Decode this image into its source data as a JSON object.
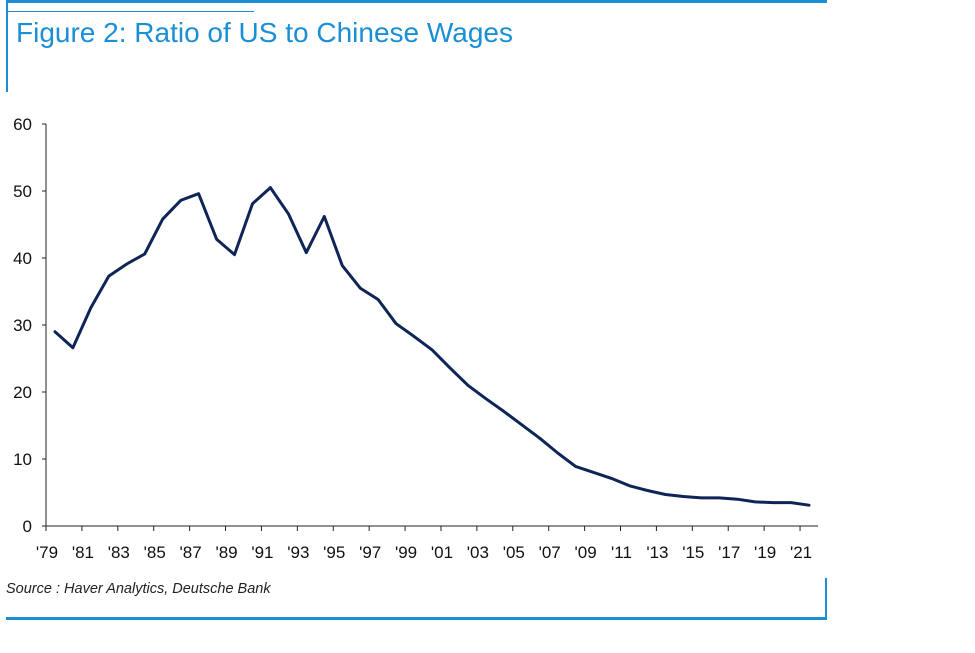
{
  "figure": {
    "title": "Figure 2: Ratio of US to Chinese Wages",
    "source": "Source : Haver Analytics, Deutsche Bank",
    "accent_color": "#1a8fd6",
    "title_color": "#1a8fd6"
  },
  "chart_data": {
    "type": "line",
    "title": "Figure 2: Ratio of US to Chinese Wages",
    "xlabel": "",
    "ylabel": "",
    "ylim": [
      0,
      60
    ],
    "yticks": [
      0,
      10,
      20,
      30,
      40,
      50,
      60
    ],
    "xlim": [
      1979,
      2022
    ],
    "xtick_years": [
      1979,
      1981,
      1983,
      1985,
      1987,
      1989,
      1991,
      1993,
      1995,
      1997,
      1999,
      2001,
      2003,
      2005,
      2007,
      2009,
      2011,
      2013,
      2015,
      2017,
      2019,
      2021
    ],
    "xtick_labels": [
      "'79",
      "'81",
      "'83",
      "'85",
      "'87",
      "'89",
      "'91",
      "'93",
      "'95",
      "'97",
      "'99",
      "'01",
      "'03",
      "'05",
      "'07",
      "'09",
      "'11",
      "'13",
      "'15",
      "'17",
      "'19",
      "'21"
    ],
    "grid": false,
    "line_color": "#0f2557",
    "series": [
      {
        "x": [
          1979.5,
          1980.5,
          1981.5,
          1982.5,
          1983.5,
          1984.5,
          1985.5,
          1986.5,
          1987.5,
          1988.5,
          1989.5,
          1990.5,
          1991.5,
          1992.5,
          1993.5,
          1994.5,
          1995.5,
          1996.5,
          1997.5,
          1998.5,
          1999.5,
          2000.5,
          2001.5,
          2002.5,
          2003.5,
          2004.5,
          2005.5,
          2006.5,
          2007.5,
          2008.5,
          2009.5,
          2010.5,
          2011.5,
          2012.5,
          2013.5,
          2014.5,
          2015.5,
          2016.5,
          2017.5,
          2018.5,
          2019.5,
          2020.5,
          2021.5
        ],
        "values": [
          29.0,
          26.6,
          32.6,
          37.3,
          39.1,
          40.6,
          45.8,
          48.6,
          49.6,
          42.8,
          40.5,
          48.1,
          50.5,
          46.6,
          40.8,
          46.2,
          38.9,
          35.5,
          33.8,
          30.2,
          28.3,
          26.3,
          23.6,
          21.0,
          19.0,
          17.1,
          15.1,
          13.1,
          10.9,
          8.9,
          8.0,
          7.1,
          6.0,
          5.3,
          4.7,
          4.4,
          4.2,
          4.2,
          4.0,
          3.6,
          3.5,
          3.5,
          3.1
        ]
      }
    ]
  }
}
